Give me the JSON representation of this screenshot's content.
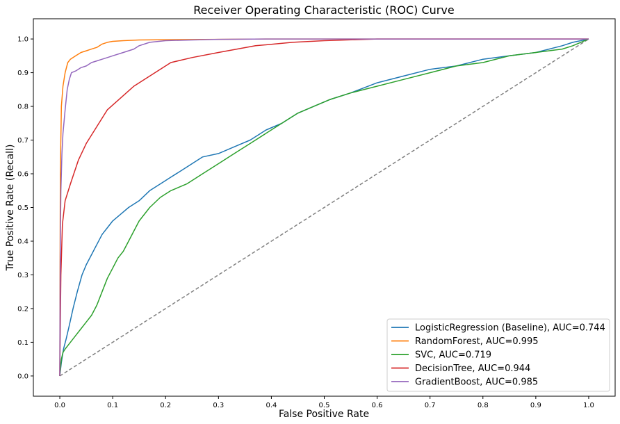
{
  "chart_data": {
    "type": "line",
    "title": "Receiver Operating Characteristic (ROC) Curve",
    "xlabel": "False Positive Rate",
    "ylabel": "True Positive Rate (Recall)",
    "xlim": [
      -0.05,
      1.05
    ],
    "ylim": [
      -0.06,
      1.06
    ],
    "xticks": [
      "0.0",
      "0.1",
      "0.2",
      "0.3",
      "0.4",
      "0.5",
      "0.6",
      "0.7",
      "0.8",
      "0.9",
      "1.0"
    ],
    "yticks": [
      "0.0",
      "0.1",
      "0.2",
      "0.3",
      "0.4",
      "0.5",
      "0.6",
      "0.7",
      "0.8",
      "0.9",
      "1.0"
    ],
    "grid": false,
    "legend_position": "bottom-right",
    "series": [
      {
        "name": "LogisticRegression (Baseline), AUC=0.744",
        "color": "#1f77b4",
        "x": [
          0.0,
          0.003,
          0.007,
          0.012,
          0.018,
          0.025,
          0.033,
          0.042,
          0.05,
          0.06,
          0.07,
          0.08,
          0.09,
          0.1,
          0.115,
          0.13,
          0.15,
          0.17,
          0.19,
          0.21,
          0.23,
          0.25,
          0.27,
          0.3,
          0.33,
          0.36,
          0.39,
          0.42,
          0.45,
          0.48,
          0.51,
          0.55,
          0.6,
          0.65,
          0.7,
          0.75,
          0.8,
          0.85,
          0.9,
          0.95,
          0.97,
          1.0
        ],
        "y": [
          0.0,
          0.04,
          0.08,
          0.11,
          0.15,
          0.2,
          0.25,
          0.3,
          0.33,
          0.36,
          0.39,
          0.42,
          0.44,
          0.46,
          0.48,
          0.5,
          0.52,
          0.55,
          0.57,
          0.59,
          0.61,
          0.63,
          0.65,
          0.66,
          0.68,
          0.7,
          0.73,
          0.75,
          0.78,
          0.8,
          0.82,
          0.84,
          0.87,
          0.89,
          0.91,
          0.92,
          0.94,
          0.95,
          0.96,
          0.98,
          0.99,
          1.0
        ]
      },
      {
        "name": "RandomForest, AUC=0.995",
        "color": "#ff7f0e",
        "x": [
          0.0,
          0.001,
          0.003,
          0.006,
          0.01,
          0.015,
          0.02,
          0.03,
          0.04,
          0.05,
          0.06,
          0.07,
          0.08,
          0.09,
          0.1,
          0.12,
          0.15,
          0.2,
          0.3,
          0.4,
          0.5,
          0.6,
          0.8,
          1.0
        ],
        "y": [
          0.0,
          0.6,
          0.8,
          0.86,
          0.9,
          0.93,
          0.94,
          0.95,
          0.96,
          0.965,
          0.97,
          0.975,
          0.985,
          0.99,
          0.993,
          0.995,
          0.997,
          0.998,
          0.999,
          1.0,
          1.0,
          1.0,
          1.0,
          1.0
        ]
      },
      {
        "name": "SVC, AUC=0.719",
        "color": "#2ca02c",
        "x": [
          0.0,
          0.003,
          0.006,
          0.01,
          0.015,
          0.02,
          0.03,
          0.04,
          0.05,
          0.06,
          0.07,
          0.08,
          0.09,
          0.1,
          0.11,
          0.12,
          0.13,
          0.14,
          0.15,
          0.17,
          0.19,
          0.21,
          0.24,
          0.27,
          0.3,
          0.33,
          0.36,
          0.39,
          0.42,
          0.45,
          0.48,
          0.51,
          0.55,
          0.6,
          0.65,
          0.7,
          0.75,
          0.8,
          0.85,
          0.9,
          0.95,
          0.97,
          1.0
        ],
        "y": [
          0.0,
          0.05,
          0.07,
          0.08,
          0.09,
          0.1,
          0.12,
          0.14,
          0.16,
          0.18,
          0.21,
          0.25,
          0.29,
          0.32,
          0.35,
          0.37,
          0.4,
          0.43,
          0.46,
          0.5,
          0.53,
          0.55,
          0.57,
          0.6,
          0.63,
          0.66,
          0.69,
          0.72,
          0.75,
          0.78,
          0.8,
          0.82,
          0.84,
          0.86,
          0.88,
          0.9,
          0.92,
          0.93,
          0.95,
          0.96,
          0.97,
          0.98,
          1.0
        ]
      },
      {
        "name": "DecisionTree, AUC=0.944",
        "color": "#d62728",
        "x": [
          0.0,
          0.002,
          0.005,
          0.01,
          0.02,
          0.035,
          0.05,
          0.07,
          0.09,
          0.14,
          0.21,
          0.25,
          0.3,
          0.37,
          0.44,
          0.5,
          0.6,
          0.8,
          1.0
        ],
        "y": [
          0.0,
          0.3,
          0.45,
          0.52,
          0.57,
          0.64,
          0.69,
          0.74,
          0.79,
          0.86,
          0.93,
          0.945,
          0.96,
          0.98,
          0.99,
          0.995,
          1.0,
          1.0,
          1.0
        ],
        "markers": true
      },
      {
        "name": "GradientBoost, AUC=0.985",
        "color": "#9467bd",
        "x": [
          0.0,
          0.001,
          0.002,
          0.004,
          0.006,
          0.01,
          0.014,
          0.018,
          0.022,
          0.03,
          0.04,
          0.05,
          0.06,
          0.07,
          0.08,
          0.09,
          0.1,
          0.12,
          0.14,
          0.15,
          0.17,
          0.2,
          0.25,
          0.3,
          0.4,
          0.5,
          0.6,
          0.8,
          1.0
        ],
        "y": [
          0.0,
          0.4,
          0.55,
          0.66,
          0.72,
          0.79,
          0.85,
          0.88,
          0.9,
          0.905,
          0.915,
          0.92,
          0.93,
          0.935,
          0.94,
          0.945,
          0.95,
          0.96,
          0.97,
          0.98,
          0.99,
          0.995,
          0.997,
          0.999,
          1.0,
          1.0,
          1.0,
          1.0,
          1.0
        ]
      },
      {
        "name": "",
        "color": "#808080",
        "dashed": true,
        "x": [
          0.0,
          1.0
        ],
        "y": [
          0.0,
          1.0
        ]
      }
    ]
  }
}
